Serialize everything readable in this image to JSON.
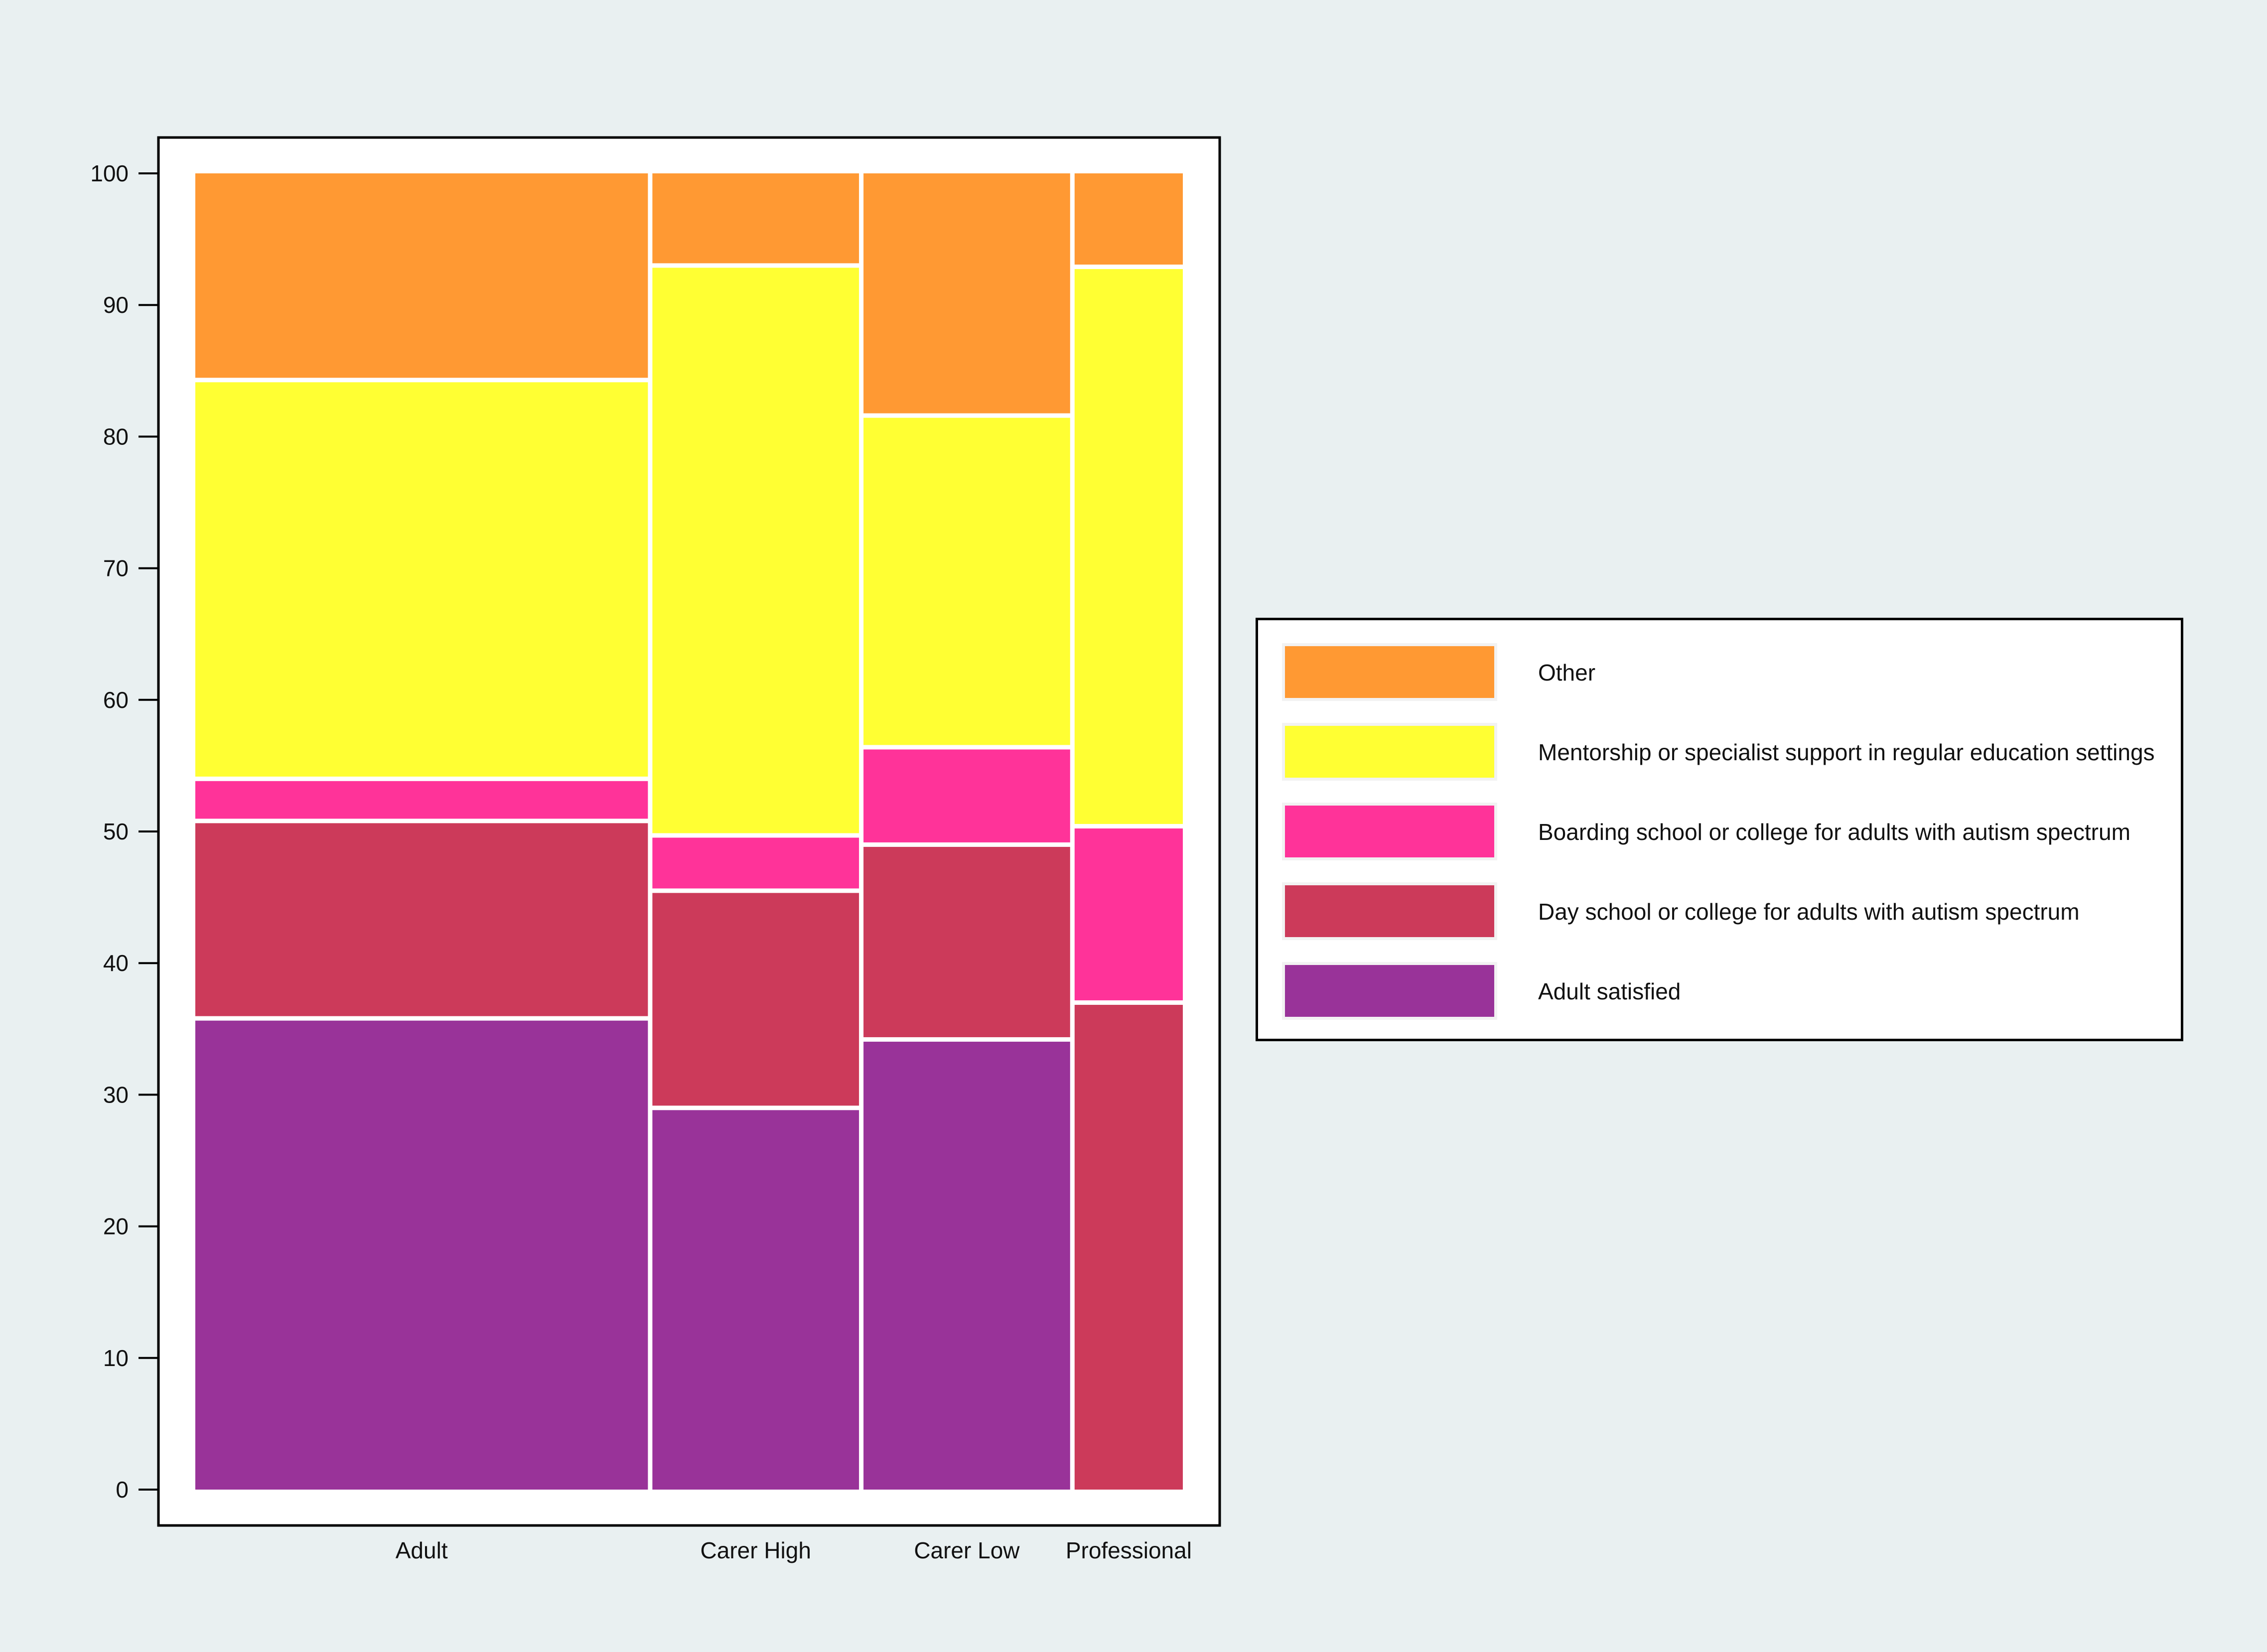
{
  "chart_data": {
    "type": "mosaic",
    "categories": [
      "Adult",
      "Carer High",
      "Carer Low",
      "Professional"
    ],
    "category_widths": [
      0.46,
      0.21,
      0.21,
      0.11
    ],
    "ylim": [
      0,
      100
    ],
    "yticks": [
      0,
      10,
      20,
      30,
      40,
      50,
      60,
      70,
      80,
      90,
      100
    ],
    "series": [
      {
        "name": "Adult satisfied",
        "color": "#993399",
        "values": [
          35.8,
          29.0,
          34.2,
          0
        ]
      },
      {
        "name": "Day school or college for adults with autism spectrum",
        "color": "#cc3a5a",
        "values": [
          15.0,
          16.5,
          14.8,
          37.0
        ]
      },
      {
        "name": "Boarding school or college for adults with autism spectrum",
        "color": "#ff3399",
        "values": [
          3.2,
          4.2,
          7.4,
          13.4
        ]
      },
      {
        "name": "Mentorship or specialist support in regular education settings",
        "color": "#ffff33",
        "values": [
          30.3,
          43.3,
          25.2,
          42.5
        ]
      },
      {
        "name": "Other",
        "color": "#ff9933",
        "values": [
          15.7,
          7.0,
          18.4,
          7.1
        ]
      }
    ],
    "legend": {
      "position": "right",
      "order": [
        "Other",
        "Mentorship or specialist support in regular education settings",
        "Boarding school or college for adults with autism spectrum",
        "Day school or college for adults with autism spectrum",
        "Adult satisfied"
      ]
    }
  }
}
